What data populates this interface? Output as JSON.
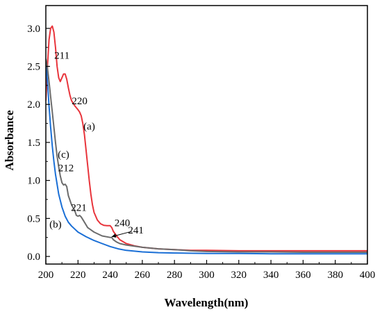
{
  "chart_data": {
    "type": "line",
    "xlabel": "Wavelength(nm)",
    "ylabel": "Absorbance",
    "xlim": [
      200,
      400
    ],
    "ylim": [
      -0.1,
      3.3
    ],
    "xticks": [
      200,
      220,
      240,
      260,
      280,
      300,
      320,
      340,
      360,
      380,
      400
    ],
    "yticks": [
      0.0,
      0.5,
      1.0,
      1.5,
      2.0,
      2.5,
      3.0
    ],
    "xtick_labels": [
      "200",
      "220",
      "240",
      "260",
      "280",
      "300",
      "320",
      "340",
      "360",
      "380",
      "400"
    ],
    "ytick_labels": [
      "0.0",
      "0.5",
      "1.0",
      "1.5",
      "2.0",
      "2.5",
      "3.0"
    ],
    "grid": false,
    "series": [
      {
        "name": "(a)",
        "color": "#e8343b",
        "x": [
          200,
          201,
          202,
          203,
          204,
          205,
          206,
          207,
          208,
          209,
          210,
          211,
          212,
          213,
          214,
          215,
          216,
          218,
          220,
          221,
          222,
          223,
          224,
          225,
          226,
          227,
          228,
          229,
          230,
          232,
          234,
          236,
          238,
          240,
          241,
          242,
          244,
          246,
          250,
          255,
          260,
          270,
          280,
          290,
          300,
          320,
          340,
          360,
          380,
          400
        ],
        "y": [
          2.05,
          2.5,
          2.85,
          3.0,
          3.03,
          2.95,
          2.75,
          2.5,
          2.35,
          2.3,
          2.35,
          2.4,
          2.4,
          2.33,
          2.22,
          2.12,
          2.05,
          1.98,
          1.93,
          1.9,
          1.85,
          1.75,
          1.6,
          1.4,
          1.2,
          1.0,
          0.82,
          0.68,
          0.58,
          0.48,
          0.43,
          0.41,
          0.405,
          0.405,
          0.38,
          0.33,
          0.27,
          0.22,
          0.17,
          0.14,
          0.12,
          0.1,
          0.09,
          0.08,
          0.08,
          0.075,
          0.075,
          0.075,
          0.075,
          0.075
        ]
      },
      {
        "name": "(b)",
        "color": "#1a6fd6",
        "x": [
          200,
          201,
          202,
          203,
          204,
          205,
          206,
          208,
          210,
          212,
          214,
          216,
          218,
          220,
          225,
          230,
          235,
          240,
          245,
          250,
          260,
          270,
          280,
          300,
          320,
          340,
          360,
          380,
          400
        ],
        "y": [
          2.55,
          2.3,
          1.98,
          1.7,
          1.45,
          1.25,
          1.08,
          0.82,
          0.65,
          0.53,
          0.45,
          0.4,
          0.36,
          0.32,
          0.26,
          0.21,
          0.17,
          0.13,
          0.1,
          0.08,
          0.06,
          0.05,
          0.045,
          0.04,
          0.04,
          0.035,
          0.035,
          0.035,
          0.035
        ]
      },
      {
        "name": "(c)",
        "color": "#6b6b6b",
        "x": [
          200,
          201,
          202,
          203,
          204,
          205,
          206,
          207,
          208,
          209,
          210,
          211,
          212,
          213,
          214,
          216,
          218,
          219,
          220,
          221,
          222,
          224,
          226,
          230,
          235,
          240,
          241,
          242,
          244,
          246,
          250,
          260,
          270,
          280,
          290,
          300,
          320,
          340,
          360,
          380,
          400
        ],
        "y": [
          2.6,
          2.48,
          2.3,
          2.1,
          1.9,
          1.7,
          1.5,
          1.32,
          1.18,
          1.06,
          0.97,
          0.94,
          0.95,
          0.92,
          0.8,
          0.68,
          0.6,
          0.54,
          0.53,
          0.54,
          0.52,
          0.45,
          0.38,
          0.32,
          0.27,
          0.25,
          0.25,
          0.22,
          0.19,
          0.17,
          0.15,
          0.12,
          0.1,
          0.09,
          0.075,
          0.065,
          0.06,
          0.06,
          0.055,
          0.055,
          0.055
        ]
      }
    ],
    "annotations": [
      {
        "text": "211",
        "x": 210,
        "y": 2.6
      },
      {
        "text": "220",
        "x": 221,
        "y": 2.0
      },
      {
        "text": "(a)",
        "x": 227,
        "y": 1.67
      },
      {
        "text": "(c)",
        "x": 211,
        "y": 1.3
      },
      {
        "text": "212",
        "x": 212.5,
        "y": 1.12
      },
      {
        "text": "221",
        "x": 220.5,
        "y": 0.6
      },
      {
        "text": "240",
        "x": 247.5,
        "y": 0.4
      },
      {
        "text": "241",
        "x": 256,
        "y": 0.3
      },
      {
        "text": "(b)",
        "x": 206,
        "y": 0.38
      }
    ],
    "arrows": [
      {
        "from": [
          253.5,
          0.33
        ],
        "to": [
          241,
          0.26
        ]
      }
    ]
  }
}
